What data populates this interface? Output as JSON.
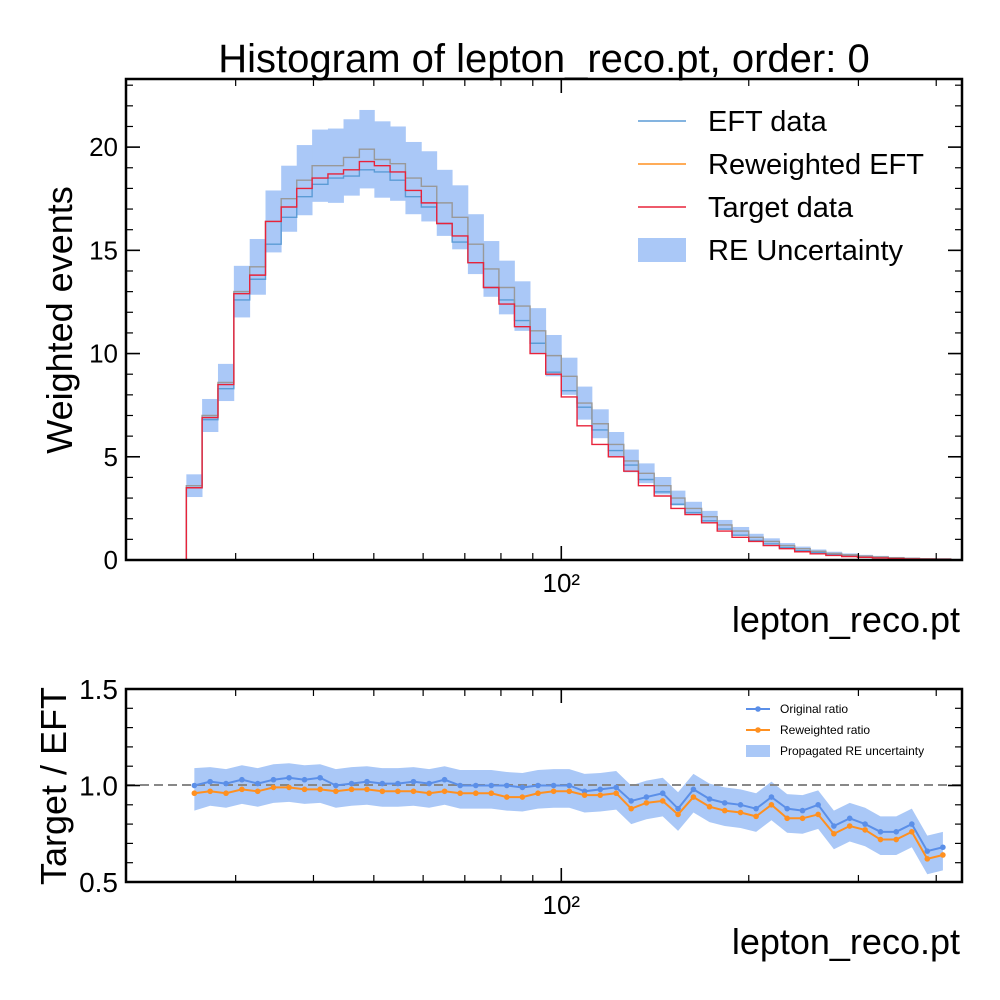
{
  "chart_data": [
    {
      "type": "histogram",
      "title": "Histogram of lepton_reco.pt, order: 0",
      "xlabel": "lepton_reco.pt",
      "ylabel": "Weighted events",
      "xscale": "log",
      "xlim": [
        20,
        440
      ],
      "ylim": [
        0,
        23.3
      ],
      "yticks": [
        0,
        5,
        10,
        15,
        20
      ],
      "xtick_label": "10²",
      "grid": false,
      "legend_position": "top-right",
      "bin_edges": [
        25,
        26.5,
        28.1,
        29.8,
        31.6,
        33.5,
        35.5,
        37.6,
        39.8,
        42.2,
        44.7,
        47.4,
        50.1,
        53.1,
        56.2,
        59.6,
        63.1,
        66.8,
        70.8,
        75,
        79.4,
        84.1,
        89.1,
        94.4,
        100,
        106,
        112,
        119,
        126,
        133,
        141,
        150,
        158,
        168,
        178,
        188,
        200,
        211,
        224,
        237,
        251,
        266,
        282,
        299,
        316,
        335,
        355,
        376,
        398,
        422
      ],
      "colors": {
        "eft": "#5b9bd5",
        "reweighted": "#ff9020",
        "target": "#e8233a",
        "uncertainty": "#aac8f7"
      },
      "series": [
        {
          "name": "EFT data",
          "values": [
            3.5,
            6.8,
            8.3,
            12.6,
            13.6,
            15.3,
            16.6,
            17.6,
            18.2,
            18.5,
            18.6,
            18.9,
            18.8,
            18.4,
            17.6,
            17.1,
            16.3,
            15.4,
            14.4,
            13.2,
            12.6,
            11.6,
            10.5,
            9.1,
            8.2,
            7.4,
            6.3,
            5.3,
            4.6,
            3.9,
            3.3,
            2.7,
            2.3,
            1.9,
            1.5,
            1.2,
            0.95,
            0.78,
            0.6,
            0.45,
            0.36,
            0.27,
            0.2,
            0.15,
            0.11,
            0.08,
            0.06,
            0.05,
            0.04
          ]
        },
        {
          "name": "Reweighted EFT",
          "values": [
            3.6,
            7.0,
            8.6,
            13.0,
            14.2,
            16.4,
            17.5,
            18.4,
            19.1,
            19.1,
            19.5,
            19.9,
            19.4,
            19.2,
            18.5,
            18.1,
            17.3,
            16.6,
            15.3,
            14.1,
            13.2,
            12.3,
            11.1,
            9.9,
            8.9,
            7.6,
            6.6,
            5.6,
            4.8,
            4.2,
            3.6,
            3.0,
            2.5,
            2.1,
            1.7,
            1.4,
            1.1,
            0.9,
            0.7,
            0.55,
            0.42,
            0.32,
            0.25,
            0.19,
            0.15,
            0.11,
            0.08,
            0.06,
            0.05
          ]
        },
        {
          "name": "Target data",
          "values": [
            3.5,
            6.9,
            8.5,
            12.9,
            13.8,
            16.4,
            17.1,
            18.0,
            18.5,
            18.7,
            18.9,
            19.3,
            19.1,
            18.8,
            17.9,
            17.3,
            16.3,
            15.7,
            14.4,
            13.2,
            12.4,
            11.3,
            10.0,
            9.0,
            7.9,
            6.5,
            5.6,
            5.0,
            4.3,
            3.6,
            3.1,
            2.5,
            2.2,
            1.8,
            1.4,
            1.1,
            0.9,
            0.7,
            0.55,
            0.4,
            0.3,
            0.22,
            0.17,
            0.13,
            0.1,
            0.07,
            0.05,
            0.04,
            0.03
          ]
        },
        {
          "name": "RE Uncertainty",
          "type": "band",
          "values": [
            0.55,
            0.8,
            0.9,
            1.25,
            1.35,
            1.5,
            1.6,
            1.7,
            1.75,
            1.8,
            1.85,
            1.9,
            1.85,
            1.8,
            1.75,
            1.7,
            1.6,
            1.55,
            1.45,
            1.35,
            1.3,
            1.2,
            1.1,
            1.0,
            0.9,
            0.8,
            0.7,
            0.6,
            0.55,
            0.48,
            0.42,
            0.36,
            0.32,
            0.28,
            0.24,
            0.2,
            0.17,
            0.15,
            0.12,
            0.1,
            0.09,
            0.08,
            0.07,
            0.06,
            0.05,
            0.04,
            0.04,
            0.03,
            0.03
          ]
        }
      ],
      "legend": [
        "EFT data",
        "Reweighted EFT",
        "Target data",
        "RE Uncertainty"
      ]
    },
    {
      "type": "line",
      "xlabel": "lepton_reco.pt",
      "ylabel": "Target / EFT",
      "xscale": "log",
      "xlim": [
        20,
        440
      ],
      "ylim": [
        0.5,
        1.5
      ],
      "yticks": [
        0.5,
        1.0,
        1.5
      ],
      "ytick_labels": [
        "0.5",
        "1.0",
        "1.5"
      ],
      "xtick_label": "10²",
      "reference_line": 1.0,
      "grid": false,
      "legend_position": "top-right",
      "x": [
        25.75,
        27.3,
        28.95,
        30.7,
        32.55,
        34.5,
        36.55,
        38.7,
        41,
        43.45,
        46.05,
        48.75,
        51.6,
        54.65,
        57.9,
        61.35,
        64.95,
        68.8,
        72.9,
        77.2,
        81.75,
        86.6,
        91.75,
        97.2,
        103,
        109,
        115.5,
        122.5,
        129.5,
        137,
        145.5,
        154,
        163,
        173,
        183,
        194,
        205.5,
        217.5,
        230.5,
        244,
        258.5,
        274,
        290.5,
        307.5,
        325.5,
        345,
        365.5,
        387,
        410
      ],
      "series": [
        {
          "name": "Original ratio",
          "values": [
            1.0,
            1.02,
            1.01,
            1.03,
            1.01,
            1.03,
            1.04,
            1.03,
            1.04,
            1.0,
            1.01,
            1.02,
            1.01,
            1.01,
            1.02,
            1.01,
            1.03,
            1.0,
            1.0,
            1.0,
            1.0,
            0.99,
            1.0,
            1.0,
            1.0,
            0.97,
            0.98,
            0.99,
            0.92,
            0.94,
            0.96,
            0.88,
            0.98,
            0.93,
            0.91,
            0.9,
            0.88,
            0.94,
            0.88,
            0.87,
            0.9,
            0.79,
            0.83,
            0.8,
            0.76,
            0.76,
            0.8,
            0.66,
            0.68
          ]
        },
        {
          "name": "Reweighted ratio",
          "values": [
            0.96,
            0.97,
            0.96,
            0.98,
            0.97,
            0.99,
            0.99,
            0.98,
            0.98,
            0.97,
            0.98,
            0.98,
            0.97,
            0.97,
            0.97,
            0.96,
            0.97,
            0.96,
            0.96,
            0.96,
            0.94,
            0.94,
            0.96,
            0.97,
            0.97,
            0.95,
            0.95,
            0.96,
            0.88,
            0.91,
            0.92,
            0.85,
            0.94,
            0.89,
            0.87,
            0.86,
            0.84,
            0.9,
            0.83,
            0.83,
            0.85,
            0.75,
            0.79,
            0.77,
            0.72,
            0.72,
            0.76,
            0.62,
            0.64
          ]
        },
        {
          "name": "Propagated RE uncertainty",
          "type": "band",
          "values": [
            0.11,
            0.1,
            0.1,
            0.1,
            0.1,
            0.1,
            0.1,
            0.1,
            0.1,
            0.1,
            0.1,
            0.1,
            0.1,
            0.1,
            0.1,
            0.1,
            0.1,
            0.1,
            0.1,
            0.1,
            0.1,
            0.1,
            0.1,
            0.1,
            0.1,
            0.1,
            0.1,
            0.1,
            0.1,
            0.1,
            0.1,
            0.1,
            0.1,
            0.1,
            0.1,
            0.1,
            0.1,
            0.1,
            0.1,
            0.1,
            0.1,
            0.1,
            0.1,
            0.1,
            0.1,
            0.1,
            0.1,
            0.1,
            0.1
          ]
        }
      ],
      "legend": [
        "Original ratio",
        "Reweighted ratio",
        "Propagated RE uncertainty"
      ]
    }
  ]
}
